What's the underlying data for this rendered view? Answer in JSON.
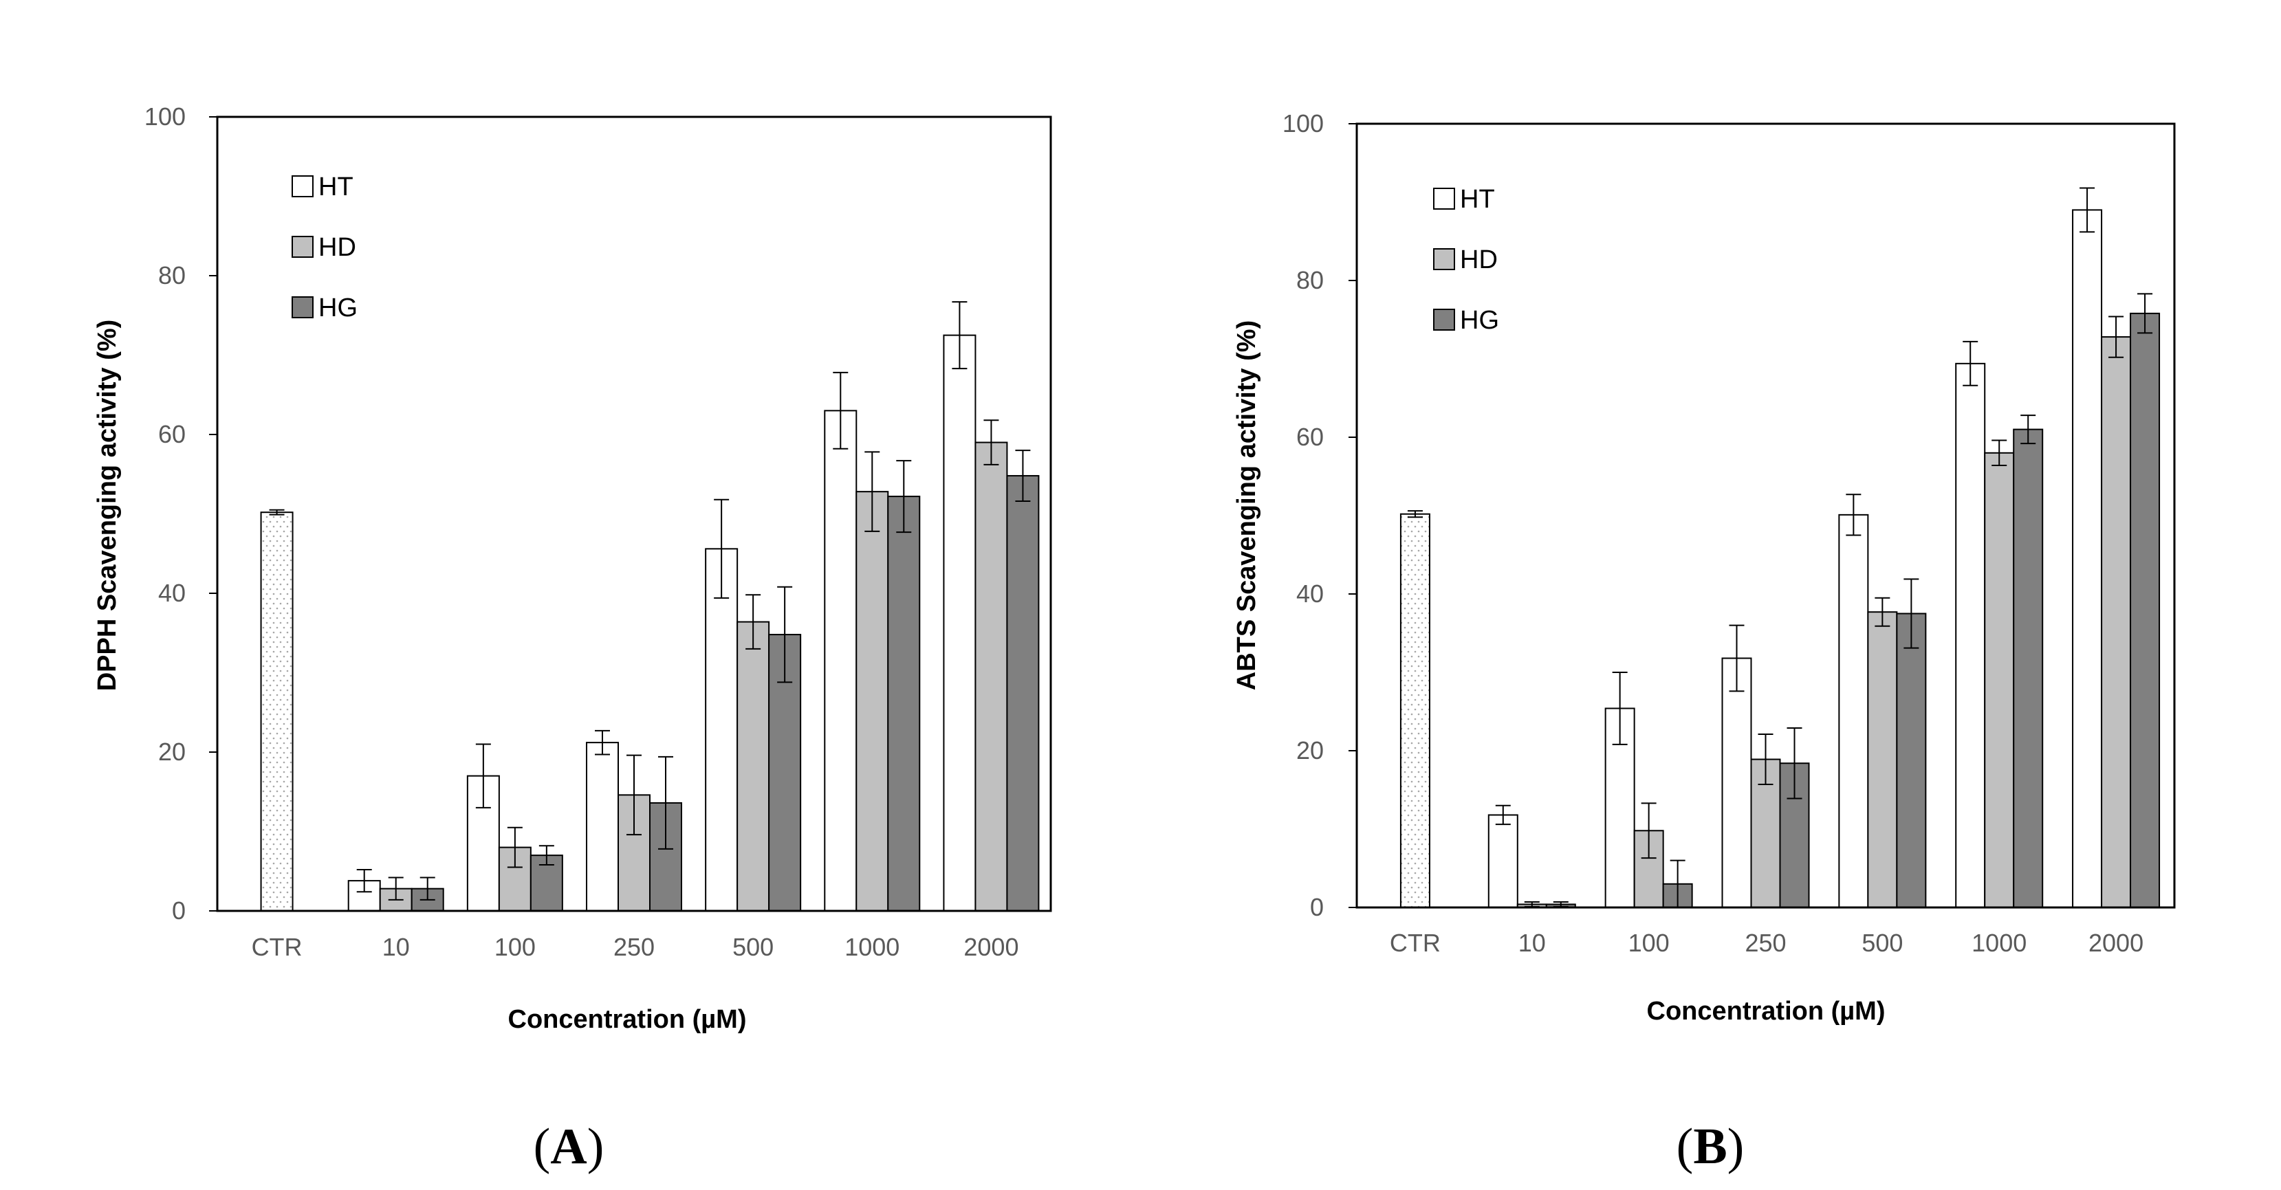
{
  "colors": {
    "HT": "#ffffff",
    "HD": "#c0c0c0",
    "HG": "#808080",
    "CTR": "#ffffff",
    "frame": "#000000",
    "error_bar": "#000000"
  },
  "chart_data": [
    {
      "type": "bar",
      "panel_label": "(A)",
      "panel_open": "(",
      "panel_letter": "A",
      "panel_close": ")",
      "title": "",
      "xlabel": "Concentration (µM)",
      "ylabel": "DPPH Scavenging activity (%)",
      "ylim": [
        0,
        100
      ],
      "yticks": [
        0,
        20,
        40,
        60,
        80,
        100
      ],
      "categories": [
        "CTR",
        "10",
        "100",
        "250",
        "500",
        "1000",
        "2000"
      ],
      "legend": [
        "HT",
        "HD",
        "HG"
      ],
      "legend_position": "top-left",
      "grid": false,
      "control": {
        "category": "CTR",
        "value": 50.2,
        "error": 0.3,
        "pattern": "dotted"
      },
      "series": [
        {
          "name": "HT",
          "values": [
            null,
            3.8,
            17.0,
            21.2,
            45.6,
            63.0,
            72.5
          ],
          "errors": [
            null,
            1.4,
            4.0,
            1.5,
            6.2,
            4.8,
            4.2
          ]
        },
        {
          "name": "HD",
          "values": [
            null,
            2.8,
            8.0,
            14.6,
            36.4,
            52.8,
            59.0
          ],
          "errors": [
            null,
            1.4,
            2.5,
            5.0,
            3.4,
            5.0,
            2.8
          ]
        },
        {
          "name": "HG",
          "values": [
            null,
            2.8,
            7.0,
            13.6,
            34.8,
            52.2,
            54.8
          ],
          "errors": [
            null,
            1.4,
            1.2,
            5.8,
            6.0,
            4.5,
            3.2
          ]
        }
      ]
    },
    {
      "type": "bar",
      "panel_label": "(B)",
      "panel_open": "(",
      "panel_letter": "B",
      "panel_close": ")",
      "title": "",
      "xlabel": "Concentration (µM)",
      "ylabel": "ABTS Scavenging activity (%)",
      "ylim": [
        0,
        100
      ],
      "yticks": [
        0,
        20,
        40,
        60,
        80,
        100
      ],
      "categories": [
        "CTR",
        "10",
        "100",
        "250",
        "500",
        "1000",
        "2000"
      ],
      "legend": [
        "HT",
        "HD",
        "HG"
      ],
      "legend_position": "top-left",
      "grid": false,
      "control": {
        "category": "CTR",
        "value": 50.2,
        "error": 0.4,
        "pattern": "dotted"
      },
      "series": [
        {
          "name": "HT",
          "values": [
            null,
            11.8,
            25.4,
            31.8,
            50.1,
            69.4,
            89.0
          ],
          "errors": [
            null,
            1.2,
            4.6,
            4.2,
            2.6,
            2.8,
            2.8
          ]
        },
        {
          "name": "HD",
          "values": [
            null,
            0.4,
            9.8,
            18.9,
            37.7,
            58.0,
            72.8
          ],
          "errors": [
            null,
            0.3,
            3.5,
            3.2,
            1.8,
            1.6,
            2.6
          ]
        },
        {
          "name": "HG",
          "values": [
            null,
            0.4,
            3.0,
            18.4,
            37.5,
            61.0,
            75.8
          ],
          "errors": [
            null,
            0.3,
            3.0,
            4.5,
            4.4,
            1.8,
            2.5
          ]
        }
      ]
    }
  ]
}
